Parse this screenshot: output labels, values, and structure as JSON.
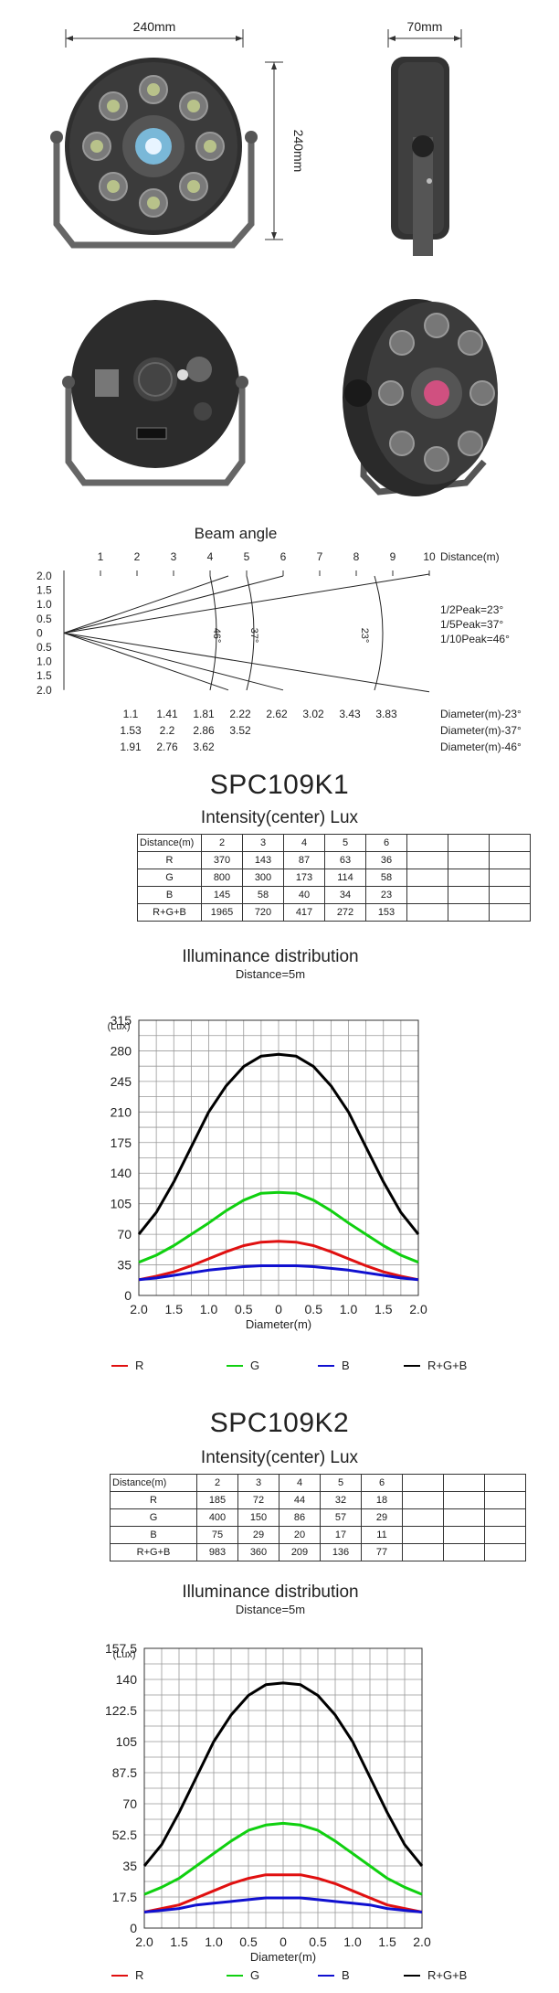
{
  "dimensions": {
    "front_width": "240mm",
    "depth": "70mm",
    "height": "240mm"
  },
  "beam": {
    "title": "Beam angle",
    "distance_label": "Distance(m)",
    "distance_ticks": [
      "1",
      "2",
      "3",
      "4",
      "5",
      "6",
      "7",
      "8",
      "9",
      "10"
    ],
    "y_ticks": [
      "2.0",
      "1.5",
      "1.0",
      "0.5",
      "0",
      "0.5",
      "1.0",
      "1.5",
      "2.0"
    ],
    "angle_marks": [
      "46°",
      "37°",
      "23°"
    ],
    "peaks": [
      "1/2Peak=23°",
      "1/5Peak=37°",
      "1/10Peak=46°"
    ],
    "diameter_rows": [
      {
        "values": [
          "1.1",
          "1.41",
          "1.81",
          "2.22",
          "2.62",
          "3.02",
          "3.43",
          "3.83"
        ],
        "label": "Diameter(m)-23°"
      },
      {
        "values": [
          "1.53",
          "2.2",
          "2.86",
          "3.52"
        ],
        "label": "Diameter(m)-37°"
      },
      {
        "values": [
          "1.91",
          "2.76",
          "3.62"
        ],
        "label": "Diameter(m)-46°"
      }
    ]
  },
  "models": [
    {
      "name": "SPC109K1",
      "table_title": "Intensity(center) Lux",
      "header": [
        "Distance(m)",
        "2",
        "3",
        "4",
        "5",
        "6",
        "",
        "",
        ""
      ],
      "rows": [
        [
          "R",
          "370",
          "143",
          "87",
          "63",
          "36",
          "",
          "",
          ""
        ],
        [
          "G",
          "800",
          "300",
          "173",
          "114",
          "58",
          "",
          "",
          ""
        ],
        [
          "B",
          "145",
          "58",
          "40",
          "34",
          "23",
          "",
          "",
          ""
        ],
        [
          "R+G+B",
          "1965",
          "720",
          "417",
          "272",
          "153",
          "",
          "",
          ""
        ]
      ],
      "chart_data": {
        "type": "line",
        "title": "Illuminance distribution",
        "subtitle": "Distance=5m",
        "ylabel": "(Lux)",
        "xlabel": "Diameter(m)",
        "x_ticks": [
          "2.0",
          "1.5",
          "1.0",
          "0.5",
          "0",
          "0.5",
          "1.0",
          "1.5",
          "2.0"
        ],
        "y_ticks": [
          "315",
          "280",
          "245",
          "210",
          "175",
          "140",
          "105",
          "70",
          "35",
          "0"
        ],
        "ylim": [
          0,
          315
        ],
        "xlim": [
          -2,
          2
        ],
        "grid": true,
        "legend_placement": "bottom",
        "x": [
          -2.0,
          -1.75,
          -1.5,
          -1.25,
          -1.0,
          -0.75,
          -0.5,
          -0.25,
          0,
          0.25,
          0.5,
          0.75,
          1.0,
          1.25,
          1.5,
          1.75,
          2.0
        ],
        "series": [
          {
            "name": "R",
            "color": "#e01010",
            "values": [
              18,
              22,
              27,
              34,
              42,
              50,
              57,
              61,
              62,
              61,
              57,
              50,
              42,
              34,
              27,
              22,
              18
            ]
          },
          {
            "name": "G",
            "color": "#10d010",
            "values": [
              38,
              46,
              57,
              70,
              83,
              97,
              109,
              117,
              118,
              117,
              109,
              97,
              83,
              70,
              57,
              46,
              38
            ]
          },
          {
            "name": "B",
            "color": "#1010d0",
            "values": [
              18,
              20,
              23,
              26,
              29,
              31,
              33,
              34,
              34,
              34,
              33,
              31,
              29,
              26,
              23,
              20,
              18
            ]
          },
          {
            "name": "R+G+B",
            "color": "#000000",
            "values": [
              70,
              95,
              130,
              170,
              210,
              240,
              262,
              274,
              276,
              274,
              262,
              240,
              210,
              170,
              130,
              95,
              70
            ]
          }
        ]
      }
    },
    {
      "name": "SPC109K2",
      "table_title": "Intensity(center) Lux",
      "header": [
        "Distance(m)",
        "2",
        "3",
        "4",
        "5",
        "6",
        "",
        "",
        ""
      ],
      "rows": [
        [
          "R",
          "185",
          "72",
          "44",
          "32",
          "18",
          "",
          "",
          ""
        ],
        [
          "G",
          "400",
          "150",
          "86",
          "57",
          "29",
          "",
          "",
          ""
        ],
        [
          "B",
          "75",
          "29",
          "20",
          "17",
          "11",
          "",
          "",
          ""
        ],
        [
          "R+G+B",
          "983",
          "360",
          "209",
          "136",
          "77",
          "",
          "",
          ""
        ]
      ],
      "chart_data": {
        "type": "line",
        "title": "Illuminance distribution",
        "subtitle": "Distance=5m",
        "ylabel": "(Lux)",
        "xlabel": "Diameter(m)",
        "x_ticks": [
          "2.0",
          "1.5",
          "1.0",
          "0.5",
          "0",
          "0.5",
          "1.0",
          "1.5",
          "2.0"
        ],
        "y_ticks": [
          "157.5",
          "140",
          "122.5",
          "105",
          "87.5",
          "70",
          "52.5",
          "35",
          "17.5",
          "0"
        ],
        "ylim": [
          0,
          157.5
        ],
        "xlim": [
          -2,
          2
        ],
        "grid": true,
        "legend_placement": "bottom",
        "x": [
          -2.0,
          -1.75,
          -1.5,
          -1.25,
          -1.0,
          -0.75,
          -0.5,
          -0.25,
          0,
          0.25,
          0.5,
          0.75,
          1.0,
          1.25,
          1.5,
          1.75,
          2.0
        ],
        "series": [
          {
            "name": "R",
            "color": "#e01010",
            "values": [
              9,
              11,
              13,
              17,
              21,
              25,
              28,
              30,
              30,
              30,
              28,
              25,
              21,
              17,
              13,
              11,
              9
            ]
          },
          {
            "name": "G",
            "color": "#10d010",
            "values": [
              19,
              23,
              28,
              35,
              42,
              49,
              55,
              58,
              59,
              58,
              55,
              49,
              42,
              35,
              28,
              23,
              19
            ]
          },
          {
            "name": "B",
            "color": "#1010d0",
            "values": [
              9,
              10,
              11,
              13,
              14,
              15,
              16,
              17,
              17,
              17,
              16,
              15,
              14,
              13,
              11,
              10,
              9
            ]
          },
          {
            "name": "R+G+B",
            "color": "#000000",
            "values": [
              35,
              47,
              65,
              85,
              105,
              120,
              131,
              137,
              138,
              137,
              131,
              120,
              105,
              85,
              65,
              47,
              35
            ]
          }
        ]
      }
    }
  ]
}
